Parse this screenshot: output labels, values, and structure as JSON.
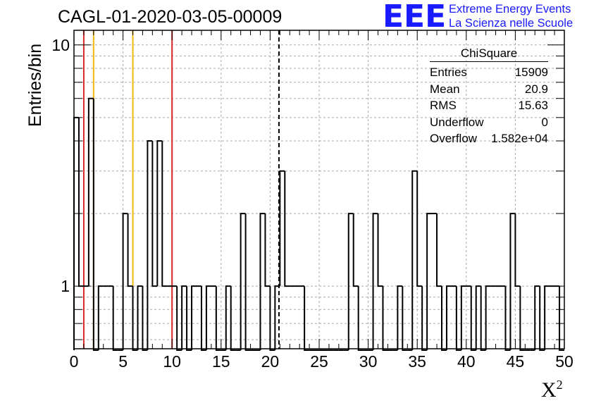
{
  "title": "CAGL-01-2020-03-05-00009",
  "logo": {
    "mark": "EEE",
    "line1": "Extreme Energy Events",
    "line2": "La Scienza nelle Scuole"
  },
  "stats_box": {
    "name": "ChiSquare",
    "rows": [
      {
        "label": "Entries",
        "value": "15909"
      },
      {
        "label": "Mean",
        "value": "20.9"
      },
      {
        "label": "RMS",
        "value": "15.63"
      },
      {
        "label": "Underflow",
        "value": "0"
      },
      {
        "label": "Overflow",
        "value": "1.582e+04"
      }
    ]
  },
  "chart_data": {
    "type": "bar",
    "histogram": true,
    "title": "CAGL-01-2020-03-05-00009",
    "xlabel": "X",
    "xlabel_superscript": "2",
    "ylabel": "Entries/bin",
    "y_scale": "log",
    "xlim": [
      0,
      50
    ],
    "ylim": [
      0.55,
      11.5
    ],
    "grid": true,
    "bin_width": 0.5,
    "x_ticks": [
      0,
      5,
      10,
      15,
      20,
      25,
      30,
      35,
      40,
      45,
      50
    ],
    "y_ticks": [
      1,
      10
    ],
    "bins": [
      {
        "x": 0.0,
        "y": 5
      },
      {
        "x": 0.5,
        "y": 1
      },
      {
        "x": 1.0,
        "y": 1
      },
      {
        "x": 1.5,
        "y": 6
      },
      {
        "x": 2.0,
        "y": 0
      },
      {
        "x": 2.5,
        "y": 1
      },
      {
        "x": 3.0,
        "y": 1
      },
      {
        "x": 3.5,
        "y": 1
      },
      {
        "x": 4.0,
        "y": 0
      },
      {
        "x": 4.5,
        "y": 0
      },
      {
        "x": 5.0,
        "y": 2
      },
      {
        "x": 5.5,
        "y": 1
      },
      {
        "x": 6.0,
        "y": 0
      },
      {
        "x": 6.5,
        "y": 1
      },
      {
        "x": 7.0,
        "y": 0
      },
      {
        "x": 7.5,
        "y": 4
      },
      {
        "x": 8.0,
        "y": 1
      },
      {
        "x": 8.5,
        "y": 4
      },
      {
        "x": 9.0,
        "y": 1
      },
      {
        "x": 9.5,
        "y": 1
      },
      {
        "x": 10.0,
        "y": 1
      },
      {
        "x": 10.5,
        "y": 0
      },
      {
        "x": 11.0,
        "y": 1
      },
      {
        "x": 11.5,
        "y": 0
      },
      {
        "x": 12.0,
        "y": 1
      },
      {
        "x": 12.5,
        "y": 1
      },
      {
        "x": 13.0,
        "y": 0
      },
      {
        "x": 13.5,
        "y": 1
      },
      {
        "x": 14.0,
        "y": 1
      },
      {
        "x": 14.5,
        "y": 0
      },
      {
        "x": 15.0,
        "y": 0
      },
      {
        "x": 15.5,
        "y": 1
      },
      {
        "x": 16.0,
        "y": 0
      },
      {
        "x": 16.5,
        "y": 0
      },
      {
        "x": 17.0,
        "y": 2
      },
      {
        "x": 17.5,
        "y": 0
      },
      {
        "x": 18.0,
        "y": 0
      },
      {
        "x": 18.5,
        "y": 0
      },
      {
        "x": 19.0,
        "y": 2
      },
      {
        "x": 19.5,
        "y": 1
      },
      {
        "x": 20.0,
        "y": 0
      },
      {
        "x": 20.5,
        "y": 1
      },
      {
        "x": 21.0,
        "y": 3
      },
      {
        "x": 21.5,
        "y": 1
      },
      {
        "x": 22.0,
        "y": 1
      },
      {
        "x": 22.5,
        "y": 1
      },
      {
        "x": 23.0,
        "y": 1
      },
      {
        "x": 23.5,
        "y": 0
      },
      {
        "x": 24.0,
        "y": 0
      },
      {
        "x": 24.5,
        "y": 0
      },
      {
        "x": 25.0,
        "y": 0
      },
      {
        "x": 25.5,
        "y": 0
      },
      {
        "x": 26.0,
        "y": 0
      },
      {
        "x": 26.5,
        "y": 0
      },
      {
        "x": 27.0,
        "y": 0
      },
      {
        "x": 27.5,
        "y": 0
      },
      {
        "x": 28.0,
        "y": 2
      },
      {
        "x": 28.5,
        "y": 1
      },
      {
        "x": 29.0,
        "y": 0
      },
      {
        "x": 29.5,
        "y": 0
      },
      {
        "x": 30.0,
        "y": 0
      },
      {
        "x": 30.5,
        "y": 2
      },
      {
        "x": 31.0,
        "y": 1
      },
      {
        "x": 31.5,
        "y": 0
      },
      {
        "x": 32.0,
        "y": 0
      },
      {
        "x": 32.5,
        "y": 0
      },
      {
        "x": 33.0,
        "y": 1
      },
      {
        "x": 33.5,
        "y": 0
      },
      {
        "x": 34.0,
        "y": 0
      },
      {
        "x": 34.5,
        "y": 3
      },
      {
        "x": 35.0,
        "y": 1
      },
      {
        "x": 35.5,
        "y": 0
      },
      {
        "x": 36.0,
        "y": 2
      },
      {
        "x": 36.5,
        "y": 2
      },
      {
        "x": 37.0,
        "y": 1
      },
      {
        "x": 37.5,
        "y": 0
      },
      {
        "x": 38.0,
        "y": 1
      },
      {
        "x": 38.5,
        "y": 1
      },
      {
        "x": 39.0,
        "y": 0
      },
      {
        "x": 39.5,
        "y": 1
      },
      {
        "x": 40.0,
        "y": 1
      },
      {
        "x": 40.5,
        "y": 0
      },
      {
        "x": 41.0,
        "y": 1
      },
      {
        "x": 41.5,
        "y": 0
      },
      {
        "x": 42.0,
        "y": 1
      },
      {
        "x": 42.5,
        "y": 1
      },
      {
        "x": 43.0,
        "y": 1
      },
      {
        "x": 43.5,
        "y": 1
      },
      {
        "x": 44.0,
        "y": 0
      },
      {
        "x": 44.5,
        "y": 2
      },
      {
        "x": 45.0,
        "y": 1
      },
      {
        "x": 45.5,
        "y": 0
      },
      {
        "x": 46.0,
        "y": 0
      },
      {
        "x": 46.5,
        "y": 0
      },
      {
        "x": 47.0,
        "y": 1
      },
      {
        "x": 47.5,
        "y": 0
      },
      {
        "x": 48.0,
        "y": 1
      },
      {
        "x": 48.5,
        "y": 1
      },
      {
        "x": 49.0,
        "y": 1
      },
      {
        "x": 49.5,
        "y": 0
      }
    ],
    "reference_lines": [
      {
        "x": 1,
        "color": "#d62728",
        "style": "solid"
      },
      {
        "x": 2,
        "color": "#f2b90c",
        "style": "solid"
      },
      {
        "x": 6,
        "color": "#f2b90c",
        "style": "solid"
      },
      {
        "x": 10,
        "color": "#d62728",
        "style": "solid"
      },
      {
        "x": 20.9,
        "color": "#000000",
        "style": "dashed"
      }
    ]
  }
}
